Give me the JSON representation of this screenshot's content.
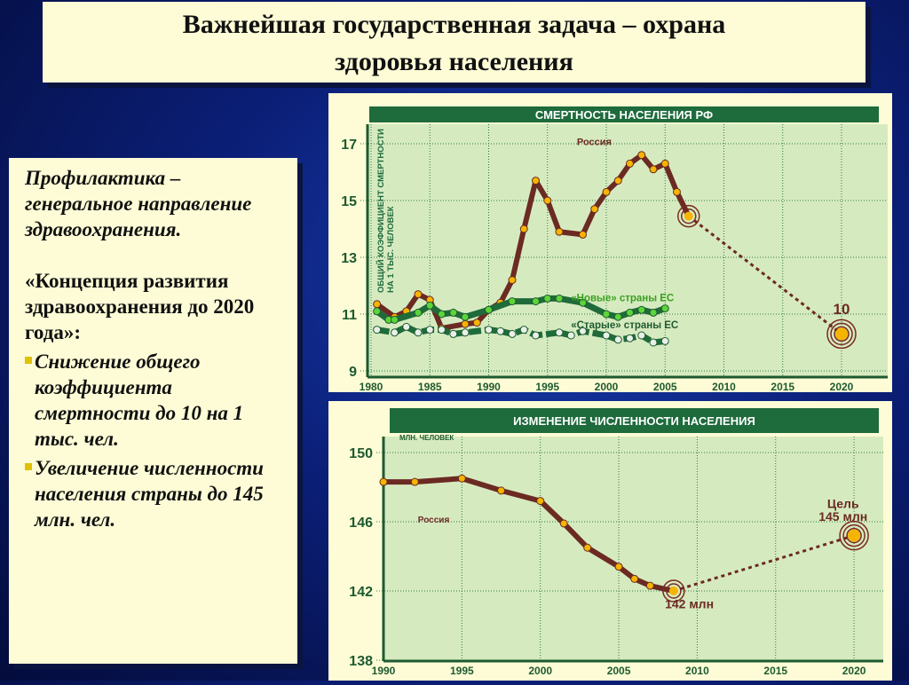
{
  "title": {
    "line1": "Важнейшая государственная задача – охрана",
    "line2": "здоровья населения"
  },
  "left": {
    "heading": "Профилактика – генеральное направление здравоохранения.",
    "concept": "«Концепция развития здравоохранения до 2020 года»:",
    "bullets": [
      "Снижение общего коэффициента смертности до 10 на 1 тыс. чел.",
      "Увеличение численности населения страны до 145 млн. чел."
    ],
    "bullet_color": "#e0c000"
  },
  "chart_data": [
    {
      "type": "line",
      "title": "СМЕРТНОСТЬ НАСЕЛЕНИЯ РФ",
      "ylabel": "ОБЩИЙ КОЭФФИЦИЕНТ СМЕРТНОСТИ НА 1 ТЫС. ЧЕЛОВЕК",
      "xlim": [
        1980,
        2023
      ],
      "ylim": [
        9,
        17
      ],
      "xticks": [
        1980,
        1985,
        1990,
        1995,
        2000,
        2005,
        2010,
        2015,
        2020
      ],
      "yticks": [
        9,
        11,
        13,
        15,
        17
      ],
      "grid": true,
      "series": [
        {
          "name": "Россия",
          "color": "#6b2a22",
          "x": [
            1980.5,
            1982,
            1983,
            1984,
            1985,
            1986,
            1988,
            1989,
            1990,
            1991,
            1992,
            1993,
            1994,
            1995,
            1996,
            1998,
            1999,
            2000,
            2001,
            2002,
            2003,
            2004,
            2005,
            2006,
            2007
          ],
          "y": [
            11.35,
            10.9,
            11.1,
            11.7,
            11.5,
            10.5,
            10.65,
            10.7,
            11.15,
            11.4,
            12.2,
            14,
            15.7,
            15,
            13.9,
            13.8,
            14.7,
            15.3,
            15.7,
            16.3,
            16.6,
            16.1,
            16.3,
            15.3,
            14.45
          ]
        },
        {
          "name": "«Новые» страны ЕС",
          "color": "#1f6b3a",
          "x": [
            1980.5,
            1981.5,
            1982,
            1984,
            1985,
            1986,
            1987,
            1988,
            1990,
            1992,
            1994,
            1995,
            1996,
            1998,
            2000,
            2001,
            2002,
            2003,
            2004,
            2005
          ],
          "y": [
            11.1,
            10.8,
            10.8,
            11.05,
            11.3,
            11.0,
            11.05,
            10.9,
            11.15,
            11.45,
            11.45,
            11.55,
            11.55,
            11.4,
            11.0,
            10.9,
            11.05,
            11.15,
            11.05,
            11.2
          ]
        },
        {
          "name": "«Старые» страны ЕС",
          "color": "#1f6b3a",
          "x": [
            1980.5,
            1982,
            1983,
            1984,
            1985,
            1986,
            1987,
            1988,
            1990,
            1991,
            1992,
            1993,
            1994,
            1996,
            1997,
            1998,
            2000,
            2001,
            2002,
            2003,
            2004,
            2005
          ],
          "y": [
            10.45,
            10.35,
            10.55,
            10.35,
            10.45,
            10.45,
            10.3,
            10.35,
            10.45,
            10.4,
            10.3,
            10.45,
            10.25,
            10.35,
            10.25,
            10.4,
            10.25,
            10.1,
            10.15,
            10.25,
            10.0,
            10.05
          ]
        }
      ],
      "projection": {
        "from": [
          2007,
          14.45
        ],
        "to": [
          2020,
          10.3
        ],
        "label": "10"
      }
    },
    {
      "type": "line",
      "title": "ИЗМЕНЕНИЕ ЧИСЛЕННОСТИ НАСЕЛЕНИЯ",
      "ylabel": "МЛН. ЧЕЛОВЕК",
      "xlim": [
        1990,
        2023
      ],
      "ylim": [
        138,
        150
      ],
      "xticks": [
        1990,
        1995,
        2000,
        2005,
        2010,
        2015,
        2020
      ],
      "yticks": [
        138,
        142,
        146,
        150
      ],
      "grid": true,
      "series": [
        {
          "name": "Россия",
          "color": "#6b2a22",
          "x": [
            1990,
            1992,
            1995,
            1997.5,
            2000,
            2001.5,
            2003,
            2005,
            2006,
            2007,
            2008.5
          ],
          "y": [
            148.3,
            148.3,
            148.5,
            147.8,
            147.2,
            145.9,
            144.5,
            143.4,
            142.7,
            142.3,
            142.0
          ]
        }
      ],
      "projection": {
        "from": [
          2008.5,
          142.0
        ],
        "to": [
          2020,
          145.2
        ],
        "label_current": "142 млн",
        "label_goal_1": "Цель",
        "label_goal_2": "145 млн"
      }
    }
  ]
}
